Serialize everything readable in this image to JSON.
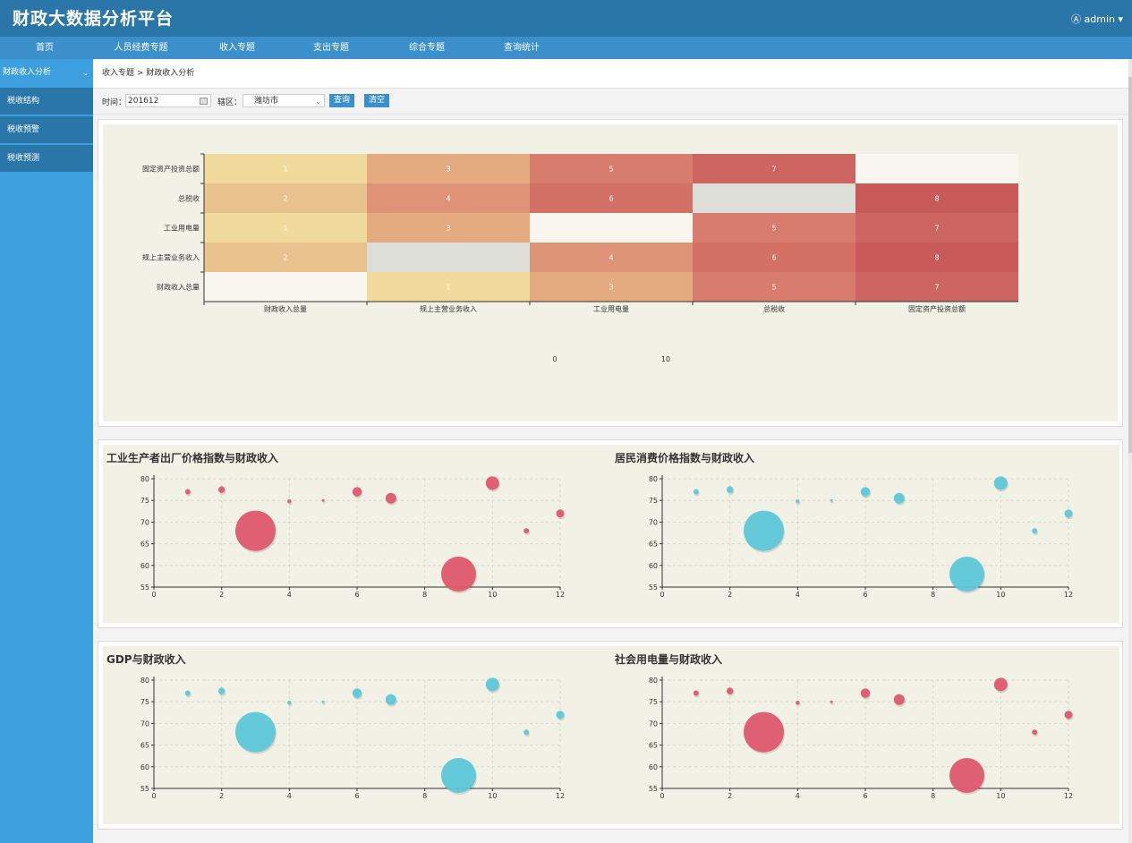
{
  "header": {
    "title": "财政大数据分析平台",
    "user": "admin"
  },
  "nav": {
    "items": [
      "首页",
      "人员经费专题",
      "收入专题",
      "支出专题",
      "综合专题",
      "查询统计"
    ]
  },
  "sidebar": {
    "group": "财政收入分析",
    "items": [
      "税收结构",
      "税收预警",
      "税收预测"
    ]
  },
  "breadcrumb": "收入专题 > 财政收入分析",
  "filter": {
    "time_label": "时间：",
    "time_value": "201612",
    "region_label": "辖区：",
    "region_value": "潍坊市",
    "query_button": "查询",
    "clear_button": "清空"
  },
  "colors": {
    "red": "#e05a6e",
    "cyan": "#5ec8d8"
  },
  "chart_data": [
    {
      "type": "heatmap",
      "x_categories": [
        "财政收入总量",
        "规上主营业务收入",
        "工业用电量",
        "总税收",
        "固定资产投资总额"
      ],
      "y_categories": [
        "财政收入总量",
        "规上主营业务收入",
        "工业用电量",
        "总税收",
        "固定资产投资总额"
      ],
      "cells": [
        [
          0,
          4,
          1
        ],
        [
          1,
          4,
          3
        ],
        [
          2,
          4,
          5
        ],
        [
          3,
          4,
          7
        ],
        [
          4,
          4,
          0
        ],
        [
          0,
          3,
          2
        ],
        [
          1,
          3,
          4
        ],
        [
          2,
          3,
          6
        ],
        [
          3,
          3,
          null
        ],
        [
          4,
          3,
          8
        ],
        [
          0,
          2,
          1
        ],
        [
          1,
          2,
          3
        ],
        [
          2,
          2,
          0
        ],
        [
          3,
          2,
          5
        ],
        [
          4,
          2,
          7
        ],
        [
          0,
          1,
          2
        ],
        [
          1,
          1,
          null
        ],
        [
          2,
          1,
          4
        ],
        [
          3,
          1,
          6
        ],
        [
          4,
          1,
          8
        ],
        [
          0,
          0,
          0
        ],
        [
          1,
          0,
          1
        ],
        [
          2,
          0,
          3
        ],
        [
          3,
          0,
          5
        ],
        [
          4,
          0,
          7
        ]
      ],
      "visual_map": {
        "min": 0,
        "max": 10,
        "min_label": "0",
        "max_label": "10"
      }
    },
    {
      "type": "scatter",
      "title": "工业生产者出厂价格指数与财政收入",
      "color": "red",
      "xlim": [
        0,
        12
      ],
      "ylim": [
        55,
        80
      ],
      "x_ticks": [
        0,
        2,
        4,
        6,
        8,
        10,
        12
      ],
      "y_ticks": [
        55,
        60,
        65,
        70,
        75,
        80
      ],
      "points": [
        [
          1,
          77,
          4
        ],
        [
          2,
          77.5,
          5
        ],
        [
          3,
          68,
          30
        ],
        [
          4,
          74.8,
          3
        ],
        [
          5,
          75,
          2
        ],
        [
          6,
          77,
          7
        ],
        [
          7,
          75.5,
          8
        ],
        [
          9,
          58,
          26
        ],
        [
          10,
          79,
          10
        ],
        [
          11,
          68,
          4
        ],
        [
          12,
          72,
          6
        ]
      ]
    },
    {
      "type": "scatter",
      "title": "居民消费价格指数与财政收入",
      "color": "cyan",
      "xlim": [
        0,
        12
      ],
      "ylim": [
        55,
        80
      ],
      "x_ticks": [
        0,
        2,
        4,
        6,
        8,
        10,
        12
      ],
      "y_ticks": [
        55,
        60,
        65,
        70,
        75,
        80
      ],
      "points": [
        [
          1,
          77,
          4
        ],
        [
          2,
          77.5,
          5
        ],
        [
          3,
          68,
          30
        ],
        [
          4,
          74.8,
          3
        ],
        [
          5,
          75,
          2
        ],
        [
          6,
          77,
          7
        ],
        [
          7,
          75.5,
          8
        ],
        [
          9,
          58,
          26
        ],
        [
          10,
          79,
          10
        ],
        [
          11,
          68,
          4
        ],
        [
          12,
          72,
          6
        ]
      ]
    },
    {
      "type": "scatter",
      "title": "GDP与财政收入",
      "color": "cyan",
      "xlim": [
        0,
        12
      ],
      "ylim": [
        55,
        80
      ],
      "x_ticks": [
        0,
        2,
        4,
        6,
        8,
        10,
        12
      ],
      "y_ticks": [
        55,
        60,
        65,
        70,
        75,
        80
      ],
      "points": [
        [
          1,
          77,
          4
        ],
        [
          2,
          77.5,
          5
        ],
        [
          3,
          68,
          30
        ],
        [
          4,
          74.8,
          3
        ],
        [
          5,
          75,
          2
        ],
        [
          6,
          77,
          7
        ],
        [
          7,
          75.5,
          8
        ],
        [
          9,
          58,
          26
        ],
        [
          10,
          79,
          10
        ],
        [
          11,
          68,
          4
        ],
        [
          12,
          72,
          6
        ]
      ]
    },
    {
      "type": "scatter",
      "title": "社会用电量与财政收入",
      "color": "red",
      "xlim": [
        0,
        12
      ],
      "ylim": [
        55,
        80
      ],
      "x_ticks": [
        0,
        2,
        4,
        6,
        8,
        10,
        12
      ],
      "y_ticks": [
        55,
        60,
        65,
        70,
        75,
        80
      ],
      "points": [
        [
          1,
          77,
          4
        ],
        [
          2,
          77.5,
          5
        ],
        [
          3,
          68,
          30
        ],
        [
          4,
          74.8,
          3
        ],
        [
          5,
          75,
          2
        ],
        [
          6,
          77,
          7
        ],
        [
          7,
          75.5,
          8
        ],
        [
          9,
          58,
          26
        ],
        [
          10,
          79,
          10
        ],
        [
          11,
          68,
          4
        ],
        [
          12,
          72,
          6
        ]
      ]
    }
  ]
}
